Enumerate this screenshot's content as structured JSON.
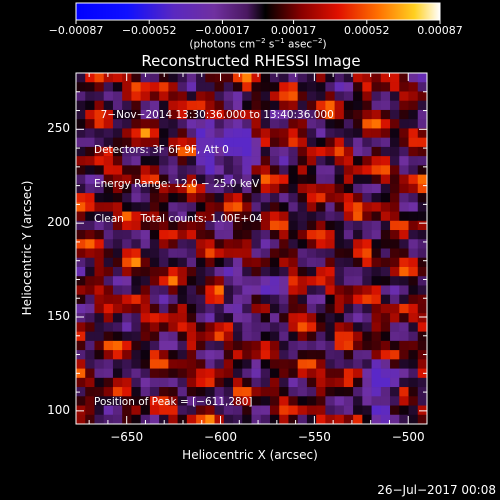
{
  "chart_data": {
    "type": "heatmap",
    "title": "Reconstructed RHESSI Image",
    "xlabel": "Heliocentric X (arcsec)",
    "ylabel": "Heliocentric Y (arcsec)",
    "xlim": [
      -677,
      -490
    ],
    "ylim": [
      93,
      280
    ],
    "xticks": [
      -650,
      -600,
      -550,
      -500
    ],
    "yticks": [
      100,
      150,
      200,
      250
    ],
    "xtick_labels": [
      "−650",
      "−600",
      "−550",
      "−500"
    ],
    "ytick_labels": [
      "100",
      "150",
      "200",
      "250"
    ],
    "colorbar": {
      "min": -0.00087,
      "max": 0.00087,
      "ticks": [
        -0.00087,
        -0.00052,
        -0.00017,
        0.00017,
        0.00052,
        0.00087
      ],
      "tick_labels": [
        "−0.00087",
        "−0.00052",
        "−0.00017",
        "0.00017",
        "0.00052",
        "0.00087"
      ],
      "unit_main": "(photons cm",
      "unit_exp1": "−2",
      "unit_mid1": " s",
      "unit_exp2": "−1",
      "unit_mid2": " asec",
      "unit_exp3": "−2",
      "unit_end": ")"
    },
    "annotations": [
      "  7−Nov−2014 13:30:36.000 to 13:40:36.000",
      "Detectors: 3F 6F 9F, Att 0",
      "Energy Range: 12.0 − 25.0 keV",
      "Clean     Total counts: 1.00E+04"
    ],
    "peak_label": "Position of Peak = [−611,280]",
    "peak_position": [
      -611,
      280
    ],
    "pixel_grid": [
      38,
      38
    ]
  },
  "footer": {
    "timestamp": "26−Jul−2017 00:08"
  }
}
